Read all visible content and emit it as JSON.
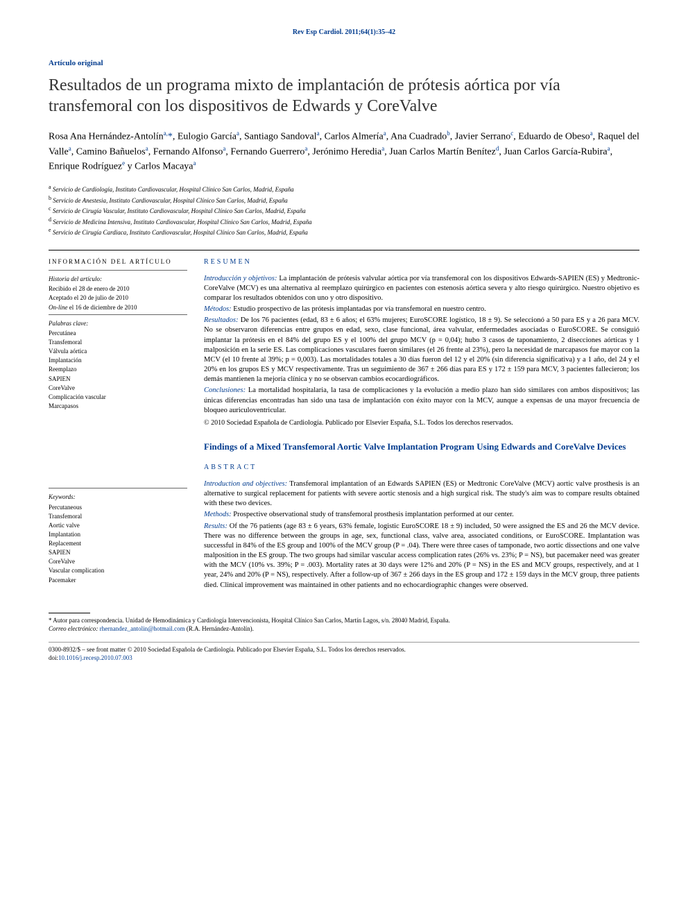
{
  "journal_header": "Rev Esp Cardiol. 2011;64(1):35–42",
  "article_type": "Artículo original",
  "title": "Resultados de un programa mixto de implantación de prótesis aórtica por vía transfemoral con los dispositivos de Edwards y CoreValve",
  "authors_html": "Rosa Ana Hernández-Antolín<sup>a,</sup><span class='asterisk'>*</span>, Eulogio García<sup>a</sup>, Santiago Sandoval<sup>a</sup>, Carlos Almería<sup>a</sup>, Ana Cuadrado<sup>b</sup>, Javier Serrano<sup>c</sup>, Eduardo de Obeso<sup>a</sup>, Raquel del Valle<sup>a</sup>, Camino Bañuelos<sup>a</sup>, Fernando Alfonso<sup>a</sup>, Fernando Guerrero<sup>a</sup>, Jerónimo Heredia<sup>a</sup>, Juan Carlos Martín Benítez<sup>d</sup>, Juan Carlos García-Rubira<sup>a</sup>, Enrique Rodríguez<sup>e</sup> y Carlos Macaya<sup>a</sup>",
  "affiliations": [
    {
      "sup": "a",
      "text": "Servicio de Cardiología, Instituto Cardiovascular, Hospital Clínico San Carlos, Madrid, España"
    },
    {
      "sup": "b",
      "text": "Servicio de Anestesia, Instituto Cardiovascular, Hospital Clínico San Carlos, Madrid, España"
    },
    {
      "sup": "c",
      "text": "Servicio de Cirugía Vascular, Instituto Cardiovascular, Hospital Clínico San Carlos, Madrid, España"
    },
    {
      "sup": "d",
      "text": "Servicio de Medicina Intensiva, Instituto Cardiovascular, Hospital Clínico San Carlos, Madrid, España"
    },
    {
      "sup": "e",
      "text": "Servicio de Cirugía Cardiaca, Instituto Cardiovascular, Hospital Clínico San Carlos, Madrid, España"
    }
  ],
  "info_head_es": "INFORMACIÓN DEL ARTÍCULO",
  "history": {
    "head": "Historia del artículo:",
    "items": [
      "Recibido el 28 de enero de 2010",
      "Aceptado el 20 de julio de 2010",
      "On-line el 16 de diciembre de 2010"
    ]
  },
  "keywords_es": {
    "head": "Palabras clave:",
    "items": [
      "Percutánea",
      "Transfemoral",
      "Válvula aórtica",
      "Implantación",
      "Reemplazo",
      "SAPIEN",
      "CoreValve",
      "Complicación vascular",
      "Marcapasos"
    ]
  },
  "resumen_head": "RESUMEN",
  "resumen": {
    "intro_label": "Introducción y objetivos:",
    "intro": " La implantación de prótesis valvular aórtica por vía transfemoral con los dispositivos Edwards-SAPIEN (ES) y Medtronic-CoreValve (MCV) es una alternativa al reemplazo quirúrgico en pacientes con estenosis aórtica severa y alto riesgo quirúrgico. Nuestro objetivo es comparar los resultados obtenidos con uno y otro dispositivo.",
    "methods_label": "Métodos:",
    "methods": " Estudio prospectivo de las prótesis implantadas por vía transfemoral en nuestro centro.",
    "results_label": "Resultados:",
    "results": " De los 76 pacientes (edad, 83 ± 6 años; el 63% mujeres; EuroSCORE logístico, 18 ± 9). Se seleccionó a 50 para ES y a 26 para MCV. No se observaron diferencias entre grupos en edad, sexo, clase funcional, área valvular, enfermedades asociadas o EuroSCORE. Se consiguió implantar la prótesis en el 84% del grupo ES y el 100% del grupo MCV (p = 0,04); hubo 3 casos de taponamiento, 2 disecciones aórticas y 1 malposición en la serie ES. Las complicaciones vasculares fueron similares (el 26 frente al 23%), pero la necesidad de marcapasos fue mayor con la MCV (el 10 frente al 39%; p = 0,003). Las mortalidades totales a 30 días fueron del 12 y el 20% (sin diferencia significativa) y a 1 año, del 24 y el 20% en los grupos ES y MCV respectivamente. Tras un seguimiento de 367 ± 266 días para ES y 172 ± 159 para MCV, 3 pacientes fallecieron; los demás mantienen la mejoría clínica y no se observan cambios ecocardiográficos.",
    "concl_label": "Conclusiones:",
    "concl": " La mortalidad hospitalaria, la tasa de complicaciones y la evolución a medio plazo han sido similares con ambos dispositivos; las únicas diferencias encontradas han sido una tasa de implantación con éxito mayor con la MCV, aunque a expensas de una mayor frecuencia de bloqueo auriculoventricular.",
    "copyright": "© 2010 Sociedad Española de Cardiología. Publicado por Elsevier España, S.L. Todos los derechos reservados."
  },
  "en_title": "Findings of a Mixed Transfemoral Aortic Valve Implantation Program Using Edwards and CoreValve Devices",
  "abstract_head": "ABSTRACT",
  "keywords_en": {
    "head": "Keywords:",
    "items": [
      "Percutaneous",
      "Transfemoral",
      "Aortic valve",
      "Implantation",
      "Replacement",
      "SAPIEN",
      "CoreValve",
      "Vascular complication",
      "Pacemaker"
    ]
  },
  "abstract": {
    "intro_label": "Introduction and objectives:",
    "intro": " Transfemoral implantation of an Edwards SAPIEN (ES) or Medtronic CoreValve (MCV) aortic valve prosthesis is an alternative to surgical replacement for patients with severe aortic stenosis and a high surgical risk. The study's aim was to compare results obtained with these two devices.",
    "methods_label": "Methods:",
    "methods": " Prospective observational study of transfemoral prosthesis implantation performed at our center.",
    "results_label": "Results:",
    "results": " Of the 76 patients (age 83 ± 6 years, 63% female, logistic EuroSCORE 18 ± 9) included, 50 were assigned the ES and 26 the MCV device. There was no difference between the groups in age, sex, functional class, valve area, associated conditions, or EuroSCORE. Implantation was successful in 84% of the ES group and 100% of the MCV group (P = .04). There were three cases of tamponade, two aortic dissections and one valve malposition in the ES group. The two groups had similar vascular access complication rates (26% vs. 23%; P = NS), but pacemaker need was greater with the MCV (10% vs. 39%; P = .003). Mortality rates at 30 days were 12% and 20% (P = NS) in the ES and MCV groups, respectively, and at 1 year, 24% and 20% (P = NS), respectively. After a follow-up of 367 ± 266 days in the ES group and 172 ± 159 days in the MCV group, three patients died. Clinical improvement was maintained in other patients and no echocardiographic changes were observed."
  },
  "corresp": {
    "label": "* Autor para correspondencia. Unidad de Hemodinámica y Cardiología Intervencionista, Hospital Clínico San Carlos, Martín Lagos, s/n. 28040 Madrid, España.",
    "email_label": "Correo electrónico:",
    "email": "rhernandez_antolin@hotmail.com",
    "email_author": "(R.A. Hernández-Antolín)."
  },
  "doi_line": {
    "issn": "0300-8932/$ – see front matter © 2010 Sociedad Española de Cardiología. Publicado por Elsevier España, S.L. Todos los derechos reservados.",
    "doi_label": "doi:",
    "doi": "10.1016/j.recesp.2010.07.003"
  },
  "colors": {
    "brand": "#003b8e",
    "text": "#000000",
    "bg": "#ffffff"
  }
}
